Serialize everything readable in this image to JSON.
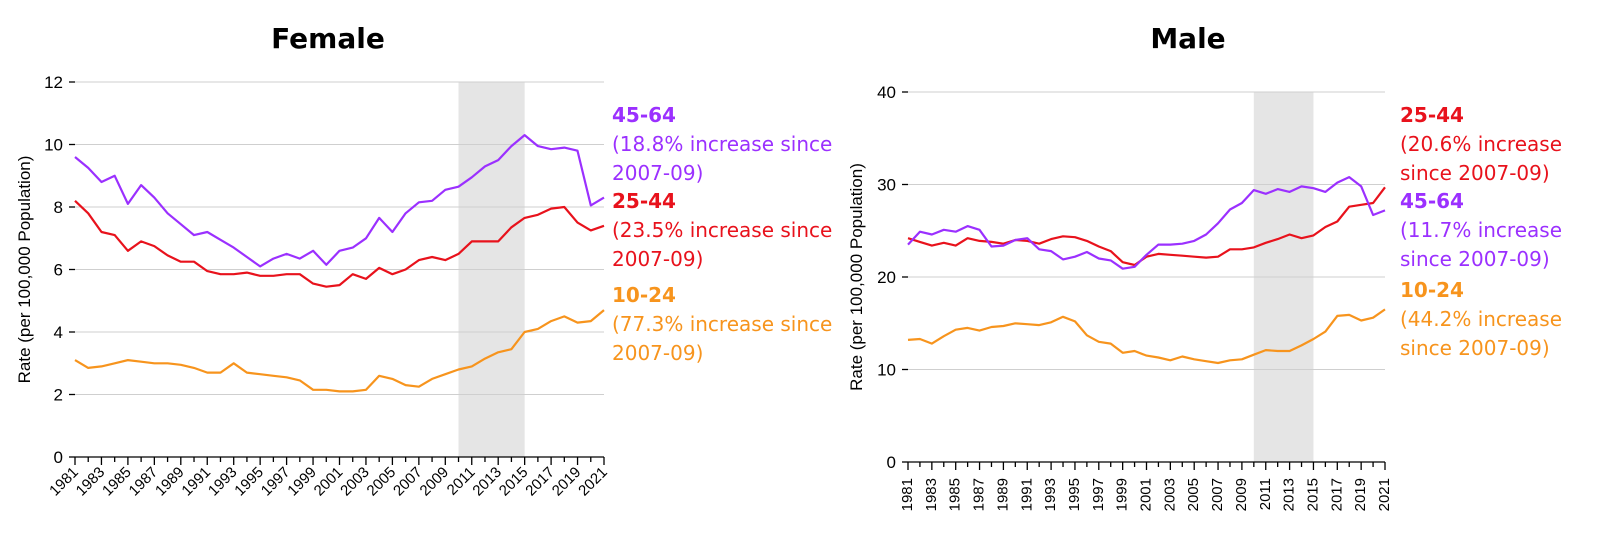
{
  "colors": {
    "age_10_24": "#f7941d",
    "age_25_44": "#e8121c",
    "age_45_64": "#9b30ff",
    "shade": "#e5e5e5"
  },
  "chart_data": [
    {
      "type": "line",
      "title": "Female",
      "xlabel": "",
      "ylabel": "Rate (per 100,000 Population)",
      "ylim": [
        0,
        12
      ],
      "yticks": [
        "0",
        "2",
        "4",
        "6",
        "8",
        "10",
        "12"
      ],
      "xticks": [
        "1981",
        "1983",
        "1985",
        "1987",
        "1989",
        "1991",
        "1993",
        "1995",
        "1997",
        "1999",
        "2001",
        "2003",
        "2005",
        "2007",
        "2009",
        "2011",
        "2013",
        "2015",
        "2017",
        "2019",
        "2021"
      ],
      "grid": true,
      "shaded_range": [
        2010,
        2015
      ],
      "x": [
        1981,
        1982,
        1983,
        1984,
        1985,
        1986,
        1987,
        1988,
        1989,
        1990,
        1991,
        1992,
        1993,
        1994,
        1995,
        1996,
        1997,
        1998,
        1999,
        2000,
        2001,
        2002,
        2003,
        2004,
        2005,
        2006,
        2007,
        2008,
        2009,
        2010,
        2011,
        2012,
        2013,
        2014,
        2015,
        2016,
        2017,
        2018,
        2019,
        2020,
        2021
      ],
      "series": [
        {
          "name": "45-64",
          "color_key": "age_45_64",
          "values": [
            9.6,
            9.25,
            8.8,
            9.0,
            8.1,
            8.7,
            8.3,
            7.8,
            7.45,
            7.1,
            7.2,
            6.95,
            6.7,
            6.4,
            6.1,
            6.35,
            6.5,
            6.35,
            6.6,
            6.15,
            6.6,
            6.7,
            7.0,
            7.65,
            7.2,
            7.8,
            8.15,
            8.2,
            8.55,
            8.65,
            8.95,
            9.3,
            9.5,
            9.95,
            10.3,
            9.95,
            9.85,
            9.9,
            9.8,
            8.05,
            8.3
          ]
        },
        {
          "name": "25-44",
          "color_key": "age_25_44",
          "values": [
            8.2,
            7.8,
            7.2,
            7.1,
            6.6,
            6.9,
            6.75,
            6.45,
            6.25,
            6.25,
            5.95,
            5.85,
            5.85,
            5.9,
            5.8,
            5.8,
            5.85,
            5.85,
            5.55,
            5.45,
            5.5,
            5.85,
            5.7,
            6.05,
            5.85,
            6.0,
            6.3,
            6.4,
            6.3,
            6.5,
            6.9,
            6.9,
            6.9,
            7.35,
            7.65,
            7.75,
            7.95,
            8.0,
            7.5,
            7.25,
            7.4
          ]
        },
        {
          "name": "10-24",
          "color_key": "age_10_24",
          "values": [
            3.1,
            2.85,
            2.9,
            3.0,
            3.1,
            3.05,
            3.0,
            3.0,
            2.95,
            2.85,
            2.7,
            2.7,
            3.0,
            2.7,
            2.65,
            2.6,
            2.55,
            2.45,
            2.15,
            2.15,
            2.1,
            2.1,
            2.15,
            2.6,
            2.5,
            2.3,
            2.25,
            2.5,
            2.65,
            2.8,
            2.9,
            3.15,
            3.35,
            3.45,
            4.0,
            4.1,
            4.35,
            4.5,
            4.3,
            4.35,
            4.7
          ]
        }
      ],
      "annotations": [
        {
          "label": "45-64",
          "text": [
            "(18.8% increase since",
            "2007-09)"
          ],
          "color_key": "age_45_64"
        },
        {
          "label": "25-44",
          "text": [
            "(23.5% increase since",
            "2007-09)"
          ],
          "color_key": "age_25_44"
        },
        {
          "label": "10-24",
          "text": [
            "(77.3% increase since",
            "2007-09)"
          ],
          "color_key": "age_10_24"
        }
      ]
    },
    {
      "type": "line",
      "title": "Male",
      "xlabel": "",
      "ylabel": "Rate (per 100,000 Population)",
      "ylim": [
        0,
        40
      ],
      "yticks": [
        "0",
        "10",
        "20",
        "30",
        "40"
      ],
      "xticks": [
        "1981",
        "1983",
        "1985",
        "1987",
        "1989",
        "1991",
        "1993",
        "1995",
        "1997",
        "1999",
        "2001",
        "2003",
        "2005",
        "2007",
        "2009",
        "2011",
        "2013",
        "2015",
        "2017",
        "2019",
        "2021"
      ],
      "grid": true,
      "shaded_range": [
        2010,
        2015
      ],
      "x": [
        1981,
        1982,
        1983,
        1984,
        1985,
        1986,
        1987,
        1988,
        1989,
        1990,
        1991,
        1992,
        1993,
        1994,
        1995,
        1996,
        1997,
        1998,
        1999,
        2000,
        2001,
        2002,
        2003,
        2004,
        2005,
        2006,
        2007,
        2008,
        2009,
        2010,
        2011,
        2012,
        2013,
        2014,
        2015,
        2016,
        2017,
        2018,
        2019,
        2020,
        2021
      ],
      "series": [
        {
          "name": "25-44",
          "color_key": "age_25_44",
          "values": [
            24.2,
            23.8,
            23.4,
            23.7,
            23.4,
            24.2,
            23.9,
            23.8,
            23.6,
            24.0,
            23.9,
            23.6,
            24.1,
            24.4,
            24.3,
            23.9,
            23.3,
            22.8,
            21.6,
            21.3,
            22.2,
            22.5,
            22.4,
            22.3,
            22.2,
            22.1,
            22.2,
            23.0,
            23.0,
            23.2,
            23.7,
            24.1,
            24.6,
            24.2,
            24.5,
            25.4,
            26.0,
            27.6,
            27.8,
            28.0,
            29.7
          ]
        },
        {
          "name": "45-64",
          "color_key": "age_45_64",
          "values": [
            23.5,
            24.9,
            24.6,
            25.1,
            24.9,
            25.5,
            25.1,
            23.3,
            23.4,
            24.0,
            24.2,
            23.0,
            22.8,
            21.9,
            22.2,
            22.7,
            22.0,
            21.8,
            20.9,
            21.1,
            22.4,
            23.5,
            23.5,
            23.6,
            23.9,
            24.6,
            25.8,
            27.3,
            28.0,
            29.4,
            29.0,
            29.5,
            29.2,
            29.8,
            29.6,
            29.2,
            30.2,
            30.8,
            29.8,
            26.7,
            27.2
          ]
        },
        {
          "name": "10-24",
          "color_key": "age_10_24",
          "values": [
            13.2,
            13.3,
            12.8,
            13.6,
            14.3,
            14.5,
            14.2,
            14.6,
            14.7,
            15.0,
            14.9,
            14.8,
            15.1,
            15.7,
            15.2,
            13.7,
            13.0,
            12.8,
            11.8,
            12.0,
            11.5,
            11.3,
            11.0,
            11.4,
            11.1,
            10.9,
            10.7,
            11.0,
            11.1,
            11.6,
            12.1,
            12.0,
            12.0,
            12.6,
            13.3,
            14.1,
            15.8,
            15.9,
            15.3,
            15.6,
            16.5
          ]
        }
      ],
      "annotations": [
        {
          "label": "25-44",
          "text": [
            "(20.6% increase",
            "since 2007-09)"
          ],
          "color_key": "age_25_44"
        },
        {
          "label": "45-64",
          "text": [
            "(11.7% increase",
            "since 2007-09)"
          ],
          "color_key": "age_45_64"
        },
        {
          "label": "10-24",
          "text": [
            "(44.2% increase",
            "since 2007-09)"
          ],
          "color_key": "age_10_24"
        }
      ]
    }
  ]
}
